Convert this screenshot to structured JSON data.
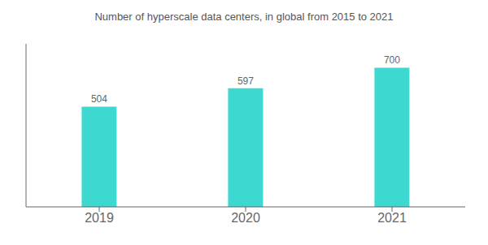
{
  "chart_data": {
    "type": "bar",
    "title": "Number of hyperscale data centers, in global from 2015 to 2021",
    "categories": [
      "2019",
      "2020",
      "2021"
    ],
    "values": [
      504,
      597,
      700
    ],
    "color": "#3DD9D0",
    "ylim": [
      0,
      820
    ],
    "data_labels": true,
    "tick_labels": "x",
    "grid": false
  }
}
